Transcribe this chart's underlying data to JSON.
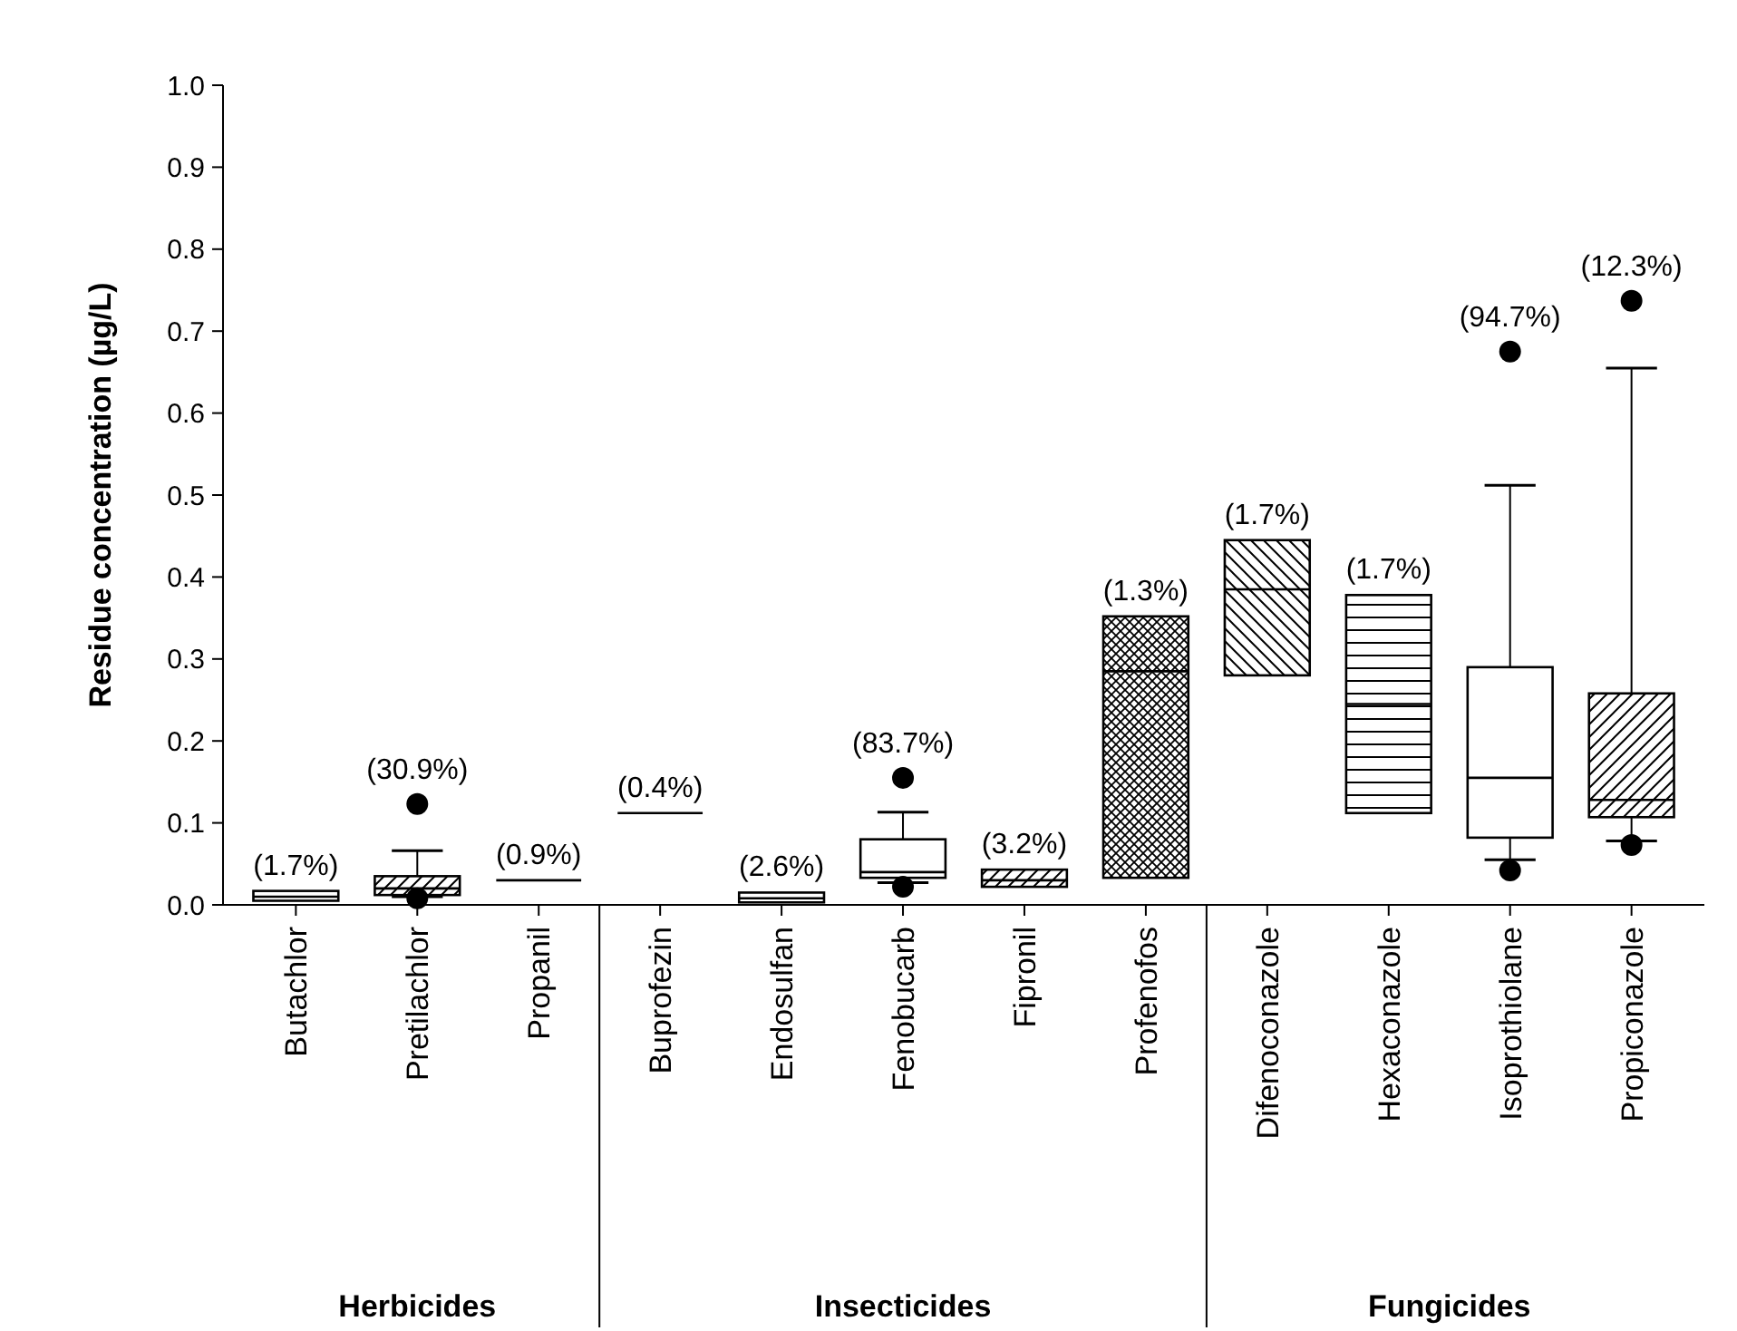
{
  "chart_data": {
    "type": "box",
    "ylabel": "Residue concentration (µg/L)",
    "categories": [
      "Butachlor",
      "Pretilachlor",
      "Propanil",
      "Buprofezin",
      "Endosulfan",
      "Fenobucarb",
      "Fipronil",
      "Profenofos",
      "Difenoconazole",
      "Hexaconazole",
      "Isoprothiolane",
      "Propiconazole"
    ],
    "boxes": [
      {
        "low": 0.005,
        "q1": 0.005,
        "median": 0.01,
        "q3": 0.017,
        "high": 0.017
      },
      {
        "low": 0.01,
        "q1": 0.012,
        "median": 0.02,
        "q3": 0.035,
        "high": 0.066,
        "outliers": [
          0.123,
          0.008
        ]
      },
      {
        "low": 0.03,
        "q1": 0.03,
        "median": 0.03,
        "q3": 0.03,
        "high": 0.03
      },
      {
        "low": 0.112,
        "q1": 0.112,
        "median": 0.112,
        "q3": 0.112,
        "high": 0.112
      },
      {
        "low": 0.003,
        "q1": 0.003,
        "median": 0.008,
        "q3": 0.015,
        "high": 0.015
      },
      {
        "low": 0.027,
        "q1": 0.033,
        "median": 0.04,
        "q3": 0.08,
        "high": 0.113,
        "outliers": [
          0.155,
          0.022
        ]
      },
      {
        "low": 0.022,
        "q1": 0.022,
        "median": 0.03,
        "q3": 0.043,
        "high": 0.043
      },
      {
        "low": 0.033,
        "q1": 0.033,
        "median": 0.285,
        "q3": 0.352,
        "high": 0.352
      },
      {
        "low": 0.28,
        "q1": 0.28,
        "median": 0.385,
        "q3": 0.445,
        "high": 0.445
      },
      {
        "low": 0.112,
        "q1": 0.112,
        "median": 0.245,
        "q3": 0.378,
        "high": 0.378
      },
      {
        "low": 0.055,
        "q1": 0.082,
        "median": 0.155,
        "q3": 0.29,
        "high": 0.512,
        "outliers": [
          0.675,
          0.042
        ]
      },
      {
        "low": 0.078,
        "q1": 0.107,
        "median": 0.128,
        "q3": 0.258,
        "high": 0.655,
        "outliers": [
          0.737,
          0.073
        ]
      }
    ],
    "ylim": [
      0,
      1
    ],
    "yticks": [
      {
        "value": 0,
        "label": "0.0"
      },
      {
        "value": 0.1,
        "label": "0.1"
      },
      {
        "value": 0.2,
        "label": "0.2"
      },
      {
        "value": 0.3,
        "label": "0.3"
      },
      {
        "value": 0.4,
        "label": "0.4"
      },
      {
        "value": 0.5,
        "label": "0.5"
      },
      {
        "value": 0.6,
        "label": "0.6"
      },
      {
        "value": 0.7,
        "label": "0.7"
      },
      {
        "value": 0.8,
        "label": "0.8"
      },
      {
        "value": 0.9,
        "label": "0.9"
      },
      {
        "value": 1,
        "label": "1.0"
      }
    ],
    "annotations": [
      "(1.7%)",
      "(30.9%)",
      "(0.9%)",
      "(0.4%)",
      "(2.6%)",
      "(83.7%)",
      "(3.2%)",
      "(1.3%)",
      "(1.7%)",
      "(1.7%)",
      "(94.7%)",
      "(12.3%)",
      "Herbicides",
      "Insecticides",
      "Fungicides"
    ]
  }
}
